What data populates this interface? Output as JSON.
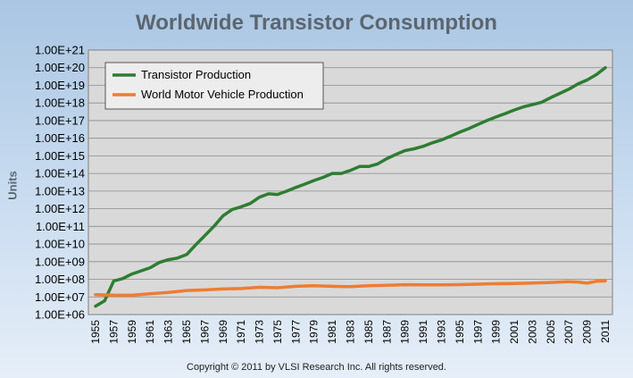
{
  "chart_data": {
    "type": "line",
    "title": "Worldwide Transistor Consumption",
    "ylabel": "Units",
    "xlabel": "",
    "y_scale": "log",
    "ylim": [
      1000000.0,
      1e+21
    ],
    "xlim": [
      1955,
      2011
    ],
    "y_tick_labels": [
      "1.00E+06",
      "1.00E+07",
      "1.00E+08",
      "1.00E+09",
      "1.00E+10",
      "1.00E+11",
      "1.00E+12",
      "1.00E+13",
      "1.00E+14",
      "1.00E+15",
      "1.00E+16",
      "1.00E+17",
      "1.00E+18",
      "1.00E+19",
      "1.00E+20",
      "1.00E+21"
    ],
    "x_tick_labels": [
      "1955",
      "1957",
      "1959",
      "1961",
      "1963",
      "1965",
      "1967",
      "1969",
      "1971",
      "1973",
      "1975",
      "1977",
      "1979",
      "1981",
      "1983",
      "1985",
      "1987",
      "1989",
      "1991",
      "1993",
      "1995",
      "1997",
      "1999",
      "2001",
      "2003",
      "2005",
      "2007",
      "2009",
      "2011"
    ],
    "grid": true,
    "legend_position": "top-left",
    "series": [
      {
        "name": "Transistor Production",
        "color": "#2e7d32",
        "x": [
          1955,
          1956,
          1957,
          1958,
          1959,
          1960,
          1961,
          1962,
          1963,
          1964,
          1965,
          1966,
          1967,
          1968,
          1969,
          1970,
          1971,
          1972,
          1973,
          1974,
          1975,
          1976,
          1977,
          1978,
          1979,
          1980,
          1981,
          1982,
          1983,
          1984,
          1985,
          1986,
          1987,
          1988,
          1989,
          1990,
          1991,
          1992,
          1993,
          1994,
          1995,
          1996,
          1997,
          1998,
          1999,
          2000,
          2001,
          2002,
          2003,
          2004,
          2005,
          2006,
          2007,
          2008,
          2009,
          2010,
          2011
        ],
        "y": [
          3000000.0,
          6000000.0,
          80000000.0,
          110000000.0,
          200000000.0,
          300000000.0,
          450000000.0,
          900000000.0,
          1300000000.0,
          1600000000.0,
          2500000000.0,
          9000000000.0,
          30000000000.0,
          100000000000.0,
          400000000000.0,
          900000000000.0,
          1300000000000.0,
          2000000000000.0,
          4500000000000.0,
          7000000000000.0,
          6500000000000.0,
          10000000000000.0,
          16000000000000.0,
          25000000000000.0,
          40000000000000.0,
          60000000000000.0,
          100000000000000.0,
          100000000000000.0,
          150000000000000.0,
          250000000000000.0,
          250000000000000.0,
          350000000000000.0,
          700000000000000.0,
          1200000000000000.0,
          2000000000000000.0,
          2500000000000000.0,
          3500000000000000.0,
          5500000000000000.0,
          8000000000000000.0,
          1.3e+16,
          2.2e+16,
          3.5e+16,
          6e+16,
          1e+17,
          1.6e+17,
          2.5e+17,
          4e+17,
          6e+17,
          8e+17,
          1.1e+18,
          2e+18,
          3.5e+18,
          6e+18,
          1.2e+19,
          2e+19,
          4e+19,
          1e+20
        ]
      },
      {
        "name": "World Motor Vehicle Production",
        "color": "#ed7d31",
        "x": [
          1955,
          1957,
          1959,
          1961,
          1963,
          1965,
          1967,
          1969,
          1971,
          1973,
          1975,
          1977,
          1979,
          1981,
          1983,
          1985,
          1987,
          1989,
          1991,
          1993,
          1995,
          1997,
          1999,
          2001,
          2003,
          2005,
          2007,
          2008,
          2009,
          2010,
          2011
        ],
        "y": [
          13500000.0,
          12500000.0,
          12500000.0,
          15000000.0,
          18000000.0,
          23000000.0,
          25000000.0,
          28000000.0,
          30000000.0,
          35000000.0,
          33000000.0,
          40000000.0,
          43000000.0,
          40000000.0,
          38000000.0,
          43000000.0,
          46000000.0,
          49000000.0,
          48000000.0,
          48000000.0,
          50000000.0,
          53000000.0,
          56000000.0,
          58000000.0,
          61000000.0,
          66000000.0,
          73000000.0,
          70000000.0,
          60000000.0,
          77000000.0,
          80000000.0
        ]
      }
    ]
  },
  "footer": {
    "copyright": "Copyright © 2011 by VLSI Research Inc.  All rights reserved."
  }
}
